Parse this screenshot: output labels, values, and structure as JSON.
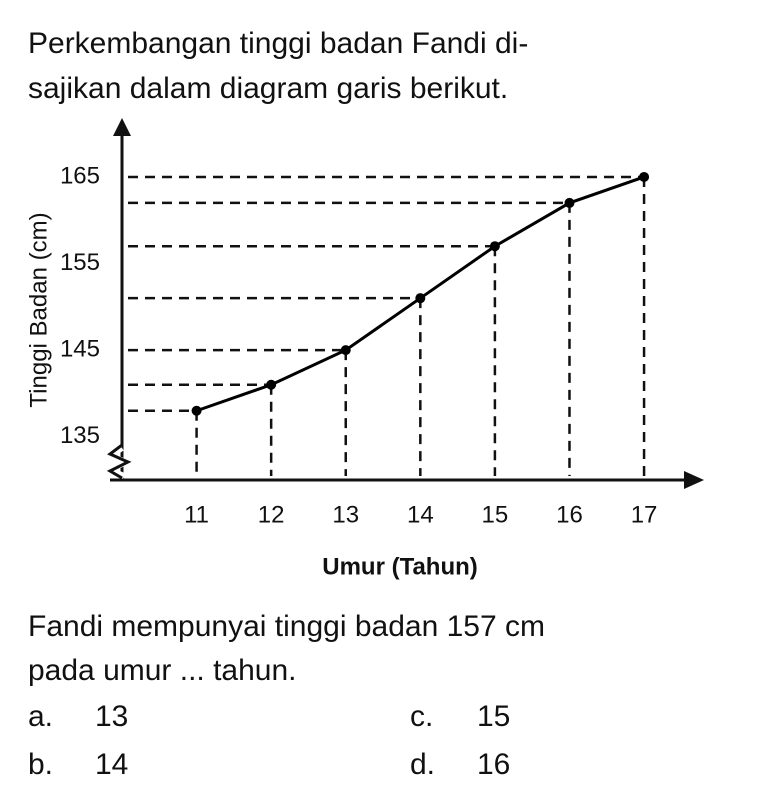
{
  "intro": [
    "Perkembangan tinggi badan Fandi di-",
    "sajikan dalam diagram garis berikut."
  ],
  "chart_data": {
    "type": "line",
    "x_label": "Umur (Tahun)",
    "y_label": "Tinggi Badan (cm)",
    "x": [
      11,
      12,
      13,
      14,
      15,
      16,
      17
    ],
    "values": [
      138,
      141,
      145,
      151,
      157,
      162,
      165
    ],
    "color": "#000000",
    "xlim": [
      10,
      17.75
    ],
    "xticks": [
      11,
      12,
      13,
      14,
      15,
      16,
      17
    ],
    "ylim": [
      130,
      171
    ],
    "yticks": [
      135,
      145,
      155,
      165
    ]
  },
  "question": [
    "Fandi mempunyai tinggi badan 157 cm",
    "pada umur ... tahun."
  ],
  "options": [
    {
      "letter": "a.",
      "text": "13"
    },
    {
      "letter": "b.",
      "text": "14"
    },
    {
      "letter": "c.",
      "text": "15"
    },
    {
      "letter": "d.",
      "text": "16"
    }
  ]
}
